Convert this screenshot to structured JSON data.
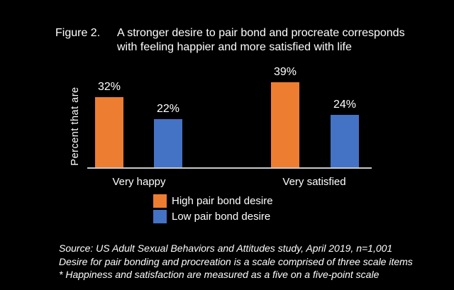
{
  "figure": {
    "label": "Figure 2.",
    "title_line1": "A stronger desire to pair bond and procreate corresponds",
    "title_line2": "with feeling happier and more satisfied with life"
  },
  "chart_data": {
    "type": "bar",
    "categories": [
      "Very happy",
      "Very satisfied"
    ],
    "series": [
      {
        "name": "High pair bond desire",
        "color": "#ED7D31",
        "values": [
          32,
          39
        ]
      },
      {
        "name": "Low pair bond desire",
        "color": "#4472C4",
        "values": [
          22,
          24
        ]
      }
    ],
    "value_labels": [
      [
        "32%",
        "39%"
      ],
      [
        "22%",
        "24%"
      ]
    ],
    "title": "A stronger desire to pair bond and procreate corresponds with feeling happier and more satisfied with life",
    "xlabel": "",
    "ylabel": "Percent that are",
    "ylim": [
      0,
      45
    ],
    "grid": false,
    "legend_position": "below-plot",
    "background_color": "#000000",
    "axis_color": "#C9C9C9",
    "text_color": "#FFFFFF"
  },
  "footer": {
    "line1": "Source: US Adult Sexual Behaviors and Attitudes study, April 2019, n=1,001",
    "line2": "Desire for pair bonding and procreation is a scale comprised of three scale items",
    "line3": "* Happiness and satisfaction are measured as a five on a five-point scale"
  }
}
